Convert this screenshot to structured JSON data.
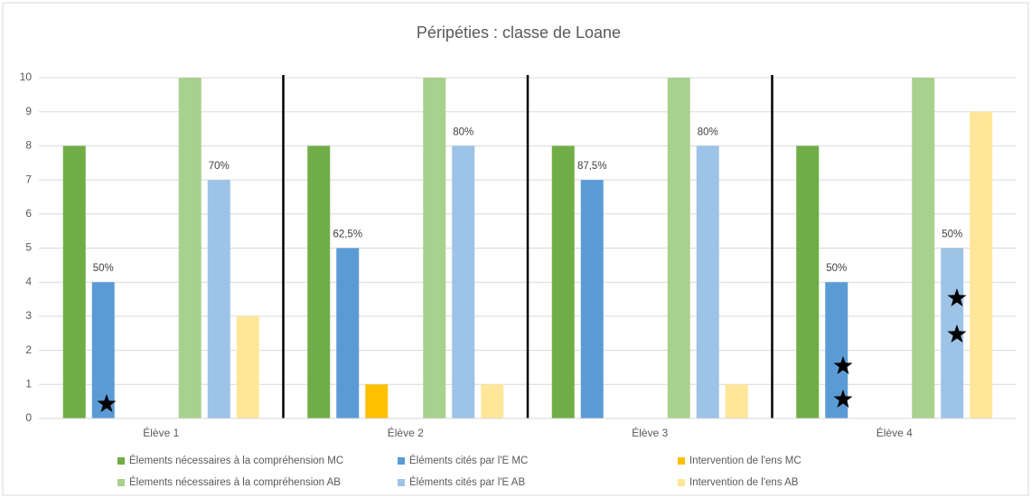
{
  "chart_data": {
    "type": "bar",
    "title": "Péripéties : classe de Loane",
    "categories": [
      "Élève 1",
      "Élève 2",
      "Élève 3",
      "Élève 4"
    ],
    "series": [
      {
        "name": "Élements nécessaires à la compréhension MC",
        "color": "#70ad47",
        "values": [
          8,
          8,
          8,
          8
        ]
      },
      {
        "name": "Éléments cités par l'E MC",
        "color": "#5b9bd5",
        "values": [
          4,
          5,
          7,
          4
        ],
        "point_labels": [
          "50%",
          "62,5%",
          "87,5%",
          "50%"
        ]
      },
      {
        "name": "Intervention de l'ens MC",
        "color": "#ffc000",
        "values": [
          0,
          1,
          0,
          0
        ]
      },
      {
        "name": "Élements nécessaires à la compréhension AB",
        "color": "#a9d18e",
        "values": [
          10,
          10,
          10,
          10
        ]
      },
      {
        "name": "Éléments cités par l'E AB",
        "color": "#9dc3e6",
        "values": [
          7,
          8,
          8,
          5
        ],
        "point_labels": [
          "70%",
          "80%",
          "80%",
          "50%"
        ]
      },
      {
        "name": "Intervention de l'ens AB",
        "color": "#ffe699",
        "values": [
          3,
          1,
          1,
          9
        ]
      }
    ],
    "ylim": [
      0,
      10
    ],
    "yticks": [
      0,
      1,
      2,
      3,
      4,
      5,
      6,
      7,
      8,
      9,
      10
    ],
    "grid": true
  }
}
